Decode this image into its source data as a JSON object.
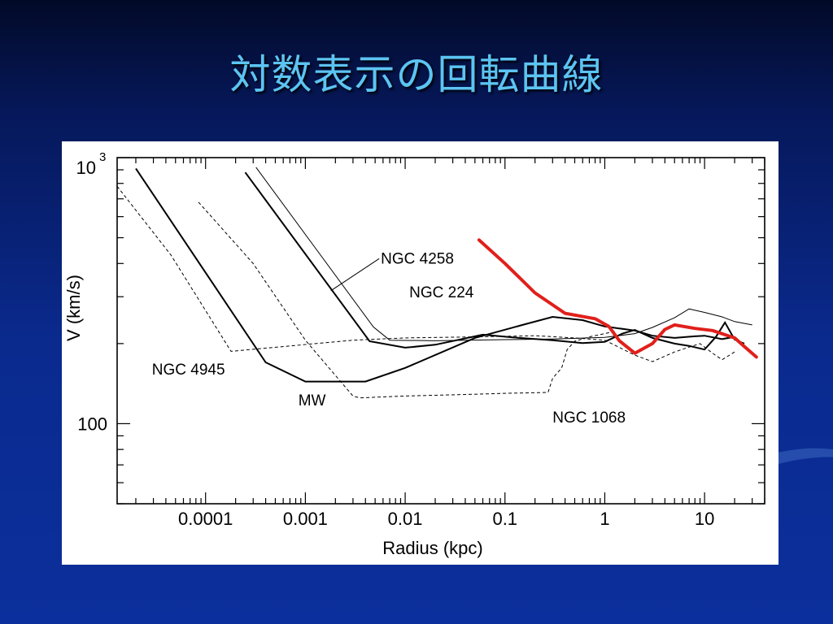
{
  "slide": {
    "title": "対数表示の回転曲線"
  },
  "colors": {
    "background": "#0a2a8e",
    "title": "#5cc4f2",
    "highlight": "#e0201b",
    "ink": "#000000"
  },
  "chart_data": {
    "type": "line",
    "xscale": "log",
    "yscale": "log",
    "xlabel": "Radius (kpc)",
    "ylabel": "V (km/s)",
    "xlim": [
      1.3e-05,
      40
    ],
    "ylim": [
      50,
      1000
    ],
    "x_ticks": [
      {
        "value": 0.0001,
        "label": "0.0001"
      },
      {
        "value": 0.001,
        "label": "0.001"
      },
      {
        "value": 0.01,
        "label": "0.01"
      },
      {
        "value": 0.1,
        "label": "0.1"
      },
      {
        "value": 1,
        "label": "1"
      },
      {
        "value": 10,
        "label": "10"
      }
    ],
    "y_ticks": [
      {
        "value": 100,
        "label": "100",
        "sup": ""
      },
      {
        "value": 1000,
        "label": "10",
        "sup": "3"
      }
    ],
    "series": [
      {
        "name": "NGC 4258",
        "style": "solid-thin",
        "x": [
          0.00032,
          0.0048,
          0.007,
          0.02,
          0.1,
          0.3,
          1,
          2,
          3,
          5,
          7,
          10,
          15,
          20,
          30
        ],
        "y": [
          920,
          231,
          206,
          205,
          207,
          208,
          211,
          218,
          230,
          250,
          270,
          262,
          252,
          242,
          235
        ]
      },
      {
        "name": "NGC 224",
        "style": "solid-thick",
        "x": [
          0.00025,
          0.0044,
          0.01,
          0.02,
          0.06,
          0.12,
          0.3,
          0.6,
          1,
          1.5,
          2,
          3,
          5,
          7,
          10,
          13,
          16,
          20,
          25
        ],
        "y": [
          880,
          204,
          193,
          198,
          216,
          211,
          206,
          201,
          203,
          218,
          225,
          210,
          200,
          196,
          190,
          212,
          240,
          207,
          200
        ]
      },
      {
        "name": "NGC 4945",
        "style": "dashed",
        "x": [
          1.3e-05,
          4.5e-05,
          0.00018,
          0.003,
          0.01,
          0.05,
          0.2,
          0.5,
          1,
          2,
          3,
          5,
          7,
          9,
          12,
          15,
          20
        ],
        "y": [
          780,
          430,
          187,
          206,
          210,
          212,
          214,
          210,
          206,
          181,
          171,
          186,
          194,
          200,
          184,
          174,
          186
        ]
      },
      {
        "name": "MW",
        "style": "solid-thick",
        "x": [
          2e-05,
          0.0004,
          0.001,
          0.004,
          0.01,
          0.05,
          0.15,
          0.3,
          0.6,
          1,
          2,
          3,
          5,
          8,
          10,
          15,
          20
        ],
        "y": [
          910,
          170,
          144,
          144,
          162,
          210,
          235,
          252,
          245,
          232,
          224,
          214,
          210,
          213,
          214,
          208,
          212
        ]
      },
      {
        "name": "NGC 1068",
        "style": "dashed",
        "x": [
          8.5e-05,
          0.0003,
          0.001,
          0.003,
          0.0035,
          0.01,
          0.05,
          0.1,
          0.27,
          0.3,
          0.37,
          0.42,
          0.5,
          0.7,
          1,
          1.3
        ],
        "y": [
          680,
          400,
          206,
          127,
          125,
          127,
          129,
          130,
          131,
          148,
          162,
          190,
          204,
          212,
          218,
          223
        ]
      },
      {
        "name": "",
        "style": "highlight",
        "x": [
          0.055,
          0.1,
          0.2,
          0.4,
          0.8,
          1.1,
          1.4,
          2,
          3,
          4,
          5,
          8,
          12,
          20,
          25,
          33
        ],
        "y": [
          490,
          400,
          310,
          260,
          248,
          232,
          205,
          184,
          200,
          226,
          235,
          228,
          224,
          210,
          195,
          178
        ]
      }
    ],
    "annotations": [
      {
        "text": "NGC 4258",
        "x": 0.0057,
        "y": 400,
        "leader_to": [
          0.0018,
          316
        ]
      },
      {
        "text": "NGC 224",
        "x": 0.011,
        "y": 298
      },
      {
        "text": "NGC 4945",
        "x": 2.9e-05,
        "y": 153
      },
      {
        "text": "MW",
        "x": 0.00085,
        "y": 117
      },
      {
        "text": "NGC 1068",
        "x": 0.3,
        "y": 101
      }
    ]
  }
}
